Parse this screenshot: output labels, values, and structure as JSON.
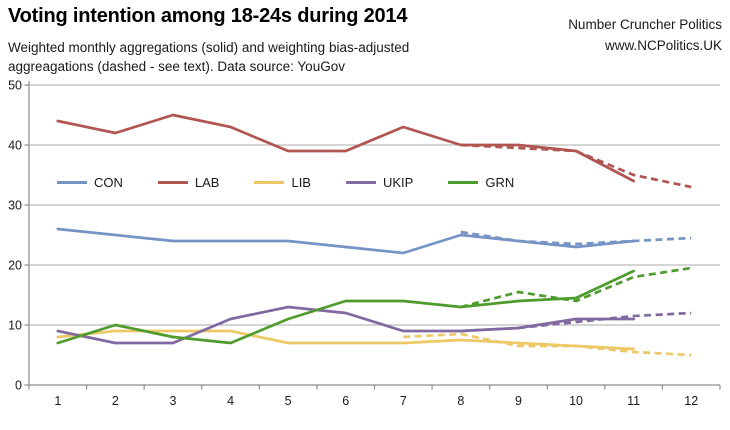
{
  "header": {
    "title": "Voting intention among 18-24s during 2014",
    "subtitle_line1": "Weighted monthly aggregations (solid) and weighting bias-adjusted",
    "subtitle_line2": "aggreagations (dashed - see text). Data source: YouGov"
  },
  "brand": {
    "name": "Number Cruncher Politics",
    "url": "www.NCPolitics.UK"
  },
  "colors": {
    "gridline": "#ABABAB",
    "axis": "#8C8C8C",
    "text": "#1a1a1a"
  },
  "chart_data": {
    "type": "line",
    "title": "Voting intention among 18-24s during 2014",
    "xlabel": "",
    "ylabel": "",
    "x_tick_labels": [
      "1",
      "2",
      "3",
      "4",
      "5",
      "6",
      "7",
      "8",
      "9",
      "10",
      "11",
      "12"
    ],
    "y_ticks": [
      0,
      10,
      20,
      30,
      40,
      50
    ],
    "ylim": [
      0,
      50
    ],
    "grid": "horizontal",
    "legend_position": "inside top-left, horizontal row",
    "line_styles": {
      "solid": "Weighted monthly aggregations",
      "dashed": "Weighting bias-adjusted aggregations"
    },
    "series": [
      {
        "name": "CON",
        "color": "#7593C4",
        "solid_months": [
          1,
          2,
          3,
          4,
          5,
          6,
          7,
          8,
          9,
          10,
          11
        ],
        "solid": [
          26,
          25,
          24,
          24,
          24,
          23,
          22,
          25,
          24,
          23,
          24
        ],
        "dashed_months": [
          8,
          9,
          10,
          11,
          12
        ],
        "dashed": [
          25.5,
          24,
          23.5,
          24,
          24.5
        ]
      },
      {
        "name": "LAB",
        "color": "#B15551",
        "solid_months": [
          1,
          2,
          3,
          4,
          5,
          6,
          7,
          8,
          9,
          10,
          11
        ],
        "solid": [
          44,
          42,
          45,
          43,
          39,
          39,
          43,
          40,
          40,
          39,
          34
        ],
        "dashed_months": [
          8,
          9,
          10,
          11,
          12
        ],
        "dashed": [
          40,
          39.5,
          39,
          35,
          33
        ]
      },
      {
        "name": "LIB",
        "color": "#EDC866",
        "solid_months": [
          1,
          2,
          3,
          4,
          5,
          6,
          7,
          8,
          9,
          10,
          11
        ],
        "solid": [
          8,
          9,
          9,
          9,
          7,
          7,
          7,
          7.5,
          7,
          6.5,
          6
        ],
        "dashed_months": [
          7,
          8,
          9,
          10,
          11,
          12
        ],
        "dashed": [
          8,
          8.5,
          6.5,
          6.5,
          5.5,
          5
        ]
      },
      {
        "name": "UKIP",
        "color": "#8169A2",
        "solid_months": [
          1,
          2,
          3,
          4,
          5,
          6,
          7,
          8,
          9,
          10,
          11
        ],
        "solid": [
          9,
          7,
          7,
          11,
          13,
          12,
          9,
          9,
          9.5,
          11,
          11
        ],
        "dashed_months": [
          8,
          9,
          10,
          11,
          12
        ],
        "dashed": [
          9,
          9.5,
          10.5,
          11.5,
          12
        ]
      },
      {
        "name": "GRN",
        "color": "#4E9C2D",
        "solid_months": [
          1,
          2,
          3,
          4,
          5,
          6,
          7,
          8,
          9,
          10,
          11
        ],
        "solid": [
          7,
          10,
          8,
          7,
          11,
          14,
          14,
          13,
          14,
          14.5,
          19
        ],
        "dashed_months": [
          8,
          9,
          10,
          11,
          12
        ],
        "dashed": [
          13,
          15.5,
          14,
          18,
          19.5
        ]
      }
    ]
  }
}
